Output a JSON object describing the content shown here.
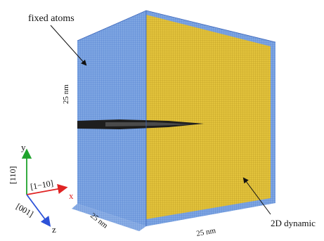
{
  "labels": {
    "fixed_atoms": "fixed atoms",
    "dynamic": "2D dynamic",
    "height_dim": "25 nm",
    "depth_dim": "25 nm",
    "width_dim": "25 nm"
  },
  "axes": {
    "y_axis": "y",
    "x_axis": "x",
    "z_axis": "z",
    "y_direction": "[110]",
    "x_direction": "[1−10]",
    "z_direction": "[001]"
  },
  "colors": {
    "fixed_region": "#7fa6e2",
    "dynamic_region": "#e3c33c",
    "crack": "#1e1e1e",
    "y_axis": "#1fa32c",
    "x_axis": "#e02424",
    "z_axis": "#2d52d8"
  }
}
